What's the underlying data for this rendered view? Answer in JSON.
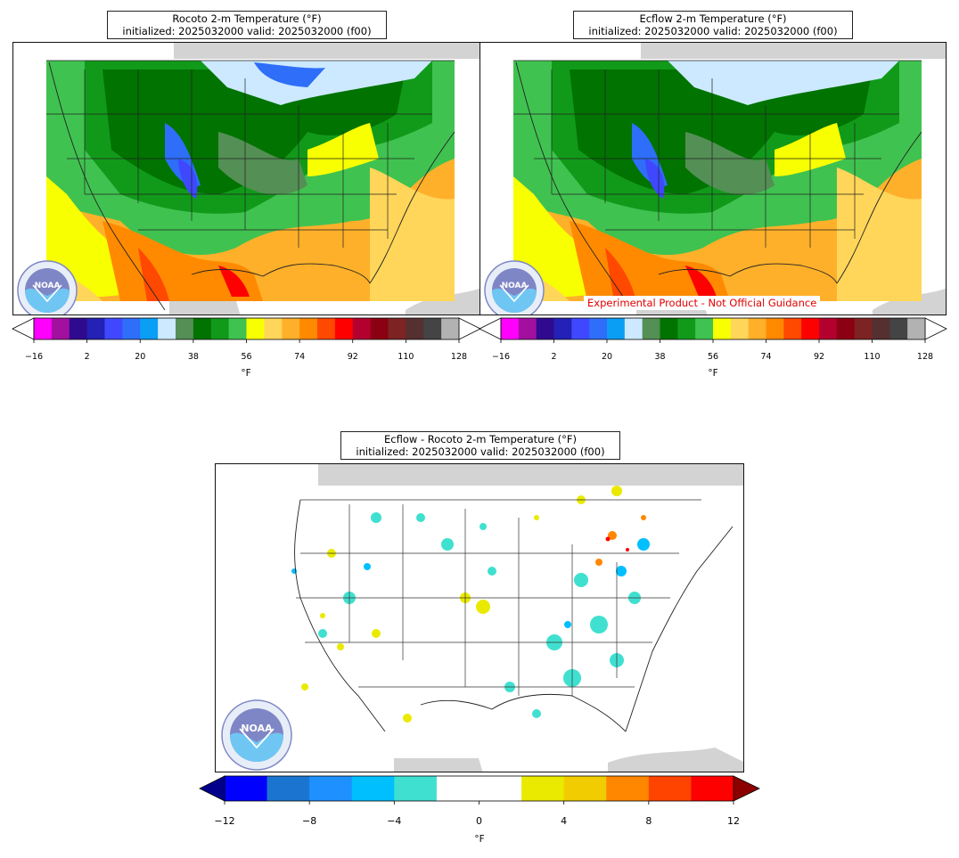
{
  "panels": [
    {
      "id": "rocoto",
      "title_line1": "Rocoto 2-m Temperature (°F)",
      "title_line2": "initialized: 2025032000 valid: 2025032000 (f00)"
    },
    {
      "id": "ecflow",
      "title_line1": "Ecflow 2-m Temperature (°F)",
      "title_line2": "initialized: 2025032000 valid: 2025032000 (f00)",
      "disclaimer": "Experimental Product - Not Official Guidance"
    },
    {
      "id": "difference",
      "title_line1": "Ecflow - Rocoto 2-m Temperature (°F)",
      "title_line2": "initialized: 2025032000 valid: 2025032000 (f00)"
    }
  ],
  "temp_colorbar": {
    "unit": "°F",
    "ticks": [
      "−16",
      "2",
      "20",
      "38",
      "56",
      "74",
      "92",
      "110",
      "128"
    ],
    "colors": [
      "#ff00ff",
      "#a3109f",
      "#300a8e",
      "#2321b6",
      "#3f48ff",
      "#2e6ef8",
      "#0a9ef5",
      "#cce9ff",
      "#548f55",
      "#007300",
      "#119a1a",
      "#40c250",
      "#f7ff00",
      "#ffd65a",
      "#ffb02a",
      "#ff8a00",
      "#ff4800",
      "#ff0000",
      "#b3002e",
      "#8b0012",
      "#7d2323",
      "#553030",
      "#444444",
      "#b2b2b2"
    ],
    "over_color": "#ffffff",
    "under_color": "#ffffff"
  },
  "diff_colorbar": {
    "unit": "°F",
    "ticks": [
      "−12",
      "−8",
      "−4",
      "0",
      "4",
      "8",
      "12"
    ],
    "colors": [
      "#0000ff",
      "#1b75d0",
      "#1e90ff",
      "#00bfff",
      "#40e0d0",
      "#ffffff",
      "#ffffff",
      "#eaea00",
      "#f0cc00",
      "#ff8700",
      "#ff4400",
      "#ff0000"
    ],
    "under_color": "#00008b",
    "over_color": "#8b0000"
  },
  "logo": {
    "name": "NOAA",
    "icon": "noaa-logo-icon"
  }
}
